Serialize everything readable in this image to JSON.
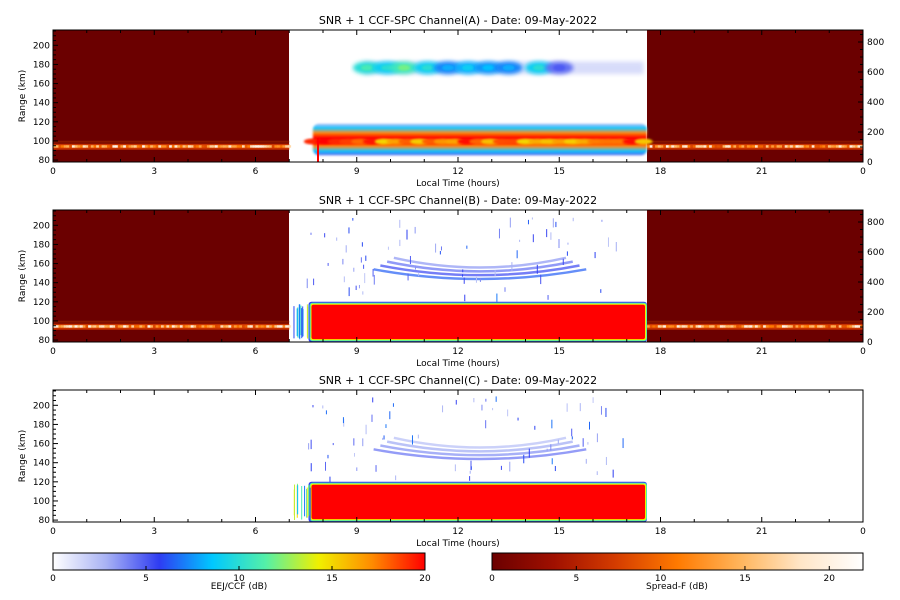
{
  "colors": {
    "eej_scale": [
      "#ffffff",
      "#a8b2f4",
      "#2e3cf2",
      "#00c8ff",
      "#54f0a8",
      "#f0f000",
      "#ff8c00",
      "#ff0000"
    ],
    "spread_scale": [
      "#6b0000",
      "#a01000",
      "#d43c00",
      "#ff7a00",
      "#ffb45a",
      "#ffe6c8",
      "#ffffff"
    ],
    "night_background": "#6b0000",
    "saturated_red": "#ff0000",
    "axis_color": "#000000"
  },
  "chart_data": [
    {
      "type": "heatmap",
      "title": "SNR + 1 CCF-SPC Channel(A) - Date: 09-May-2022",
      "xlabel": "Local Time (hours)",
      "ylabel": "Range (km)",
      "xlim": [
        0,
        24
      ],
      "ylim": [
        78,
        216
      ],
      "y2lim": [
        0,
        880
      ],
      "xticks": [
        "0",
        "3",
        "6",
        "9",
        "12",
        "15",
        "18",
        "21",
        "0"
      ],
      "yticks": [
        80,
        100,
        120,
        140,
        160,
        180,
        200
      ],
      "y2ticks": [
        0,
        200,
        400,
        600,
        800
      ],
      "night_spans_hours": [
        [
          0,
          7.0
        ],
        [
          17.6,
          24
        ]
      ],
      "day_span_hours": [
        7.0,
        17.6
      ],
      "features": [
        {
          "feature": "E-region echo layer (night, Spread-F scale)",
          "range_km": [
            90,
            98
          ]
        },
        {
          "feature": "F-region 150 km echoes",
          "hours": [
            9.2,
            17.5
          ],
          "range_km": [
            170,
            183
          ],
          "peak_db": 7
        },
        {
          "feature": "EEJ echoes",
          "hours": [
            7.7,
            17.6
          ],
          "range_km": [
            85,
            118
          ],
          "peak_db": 20
        }
      ]
    },
    {
      "type": "heatmap",
      "title": "SNR + 1 CCF-SPC Channel(B) - Date: 09-May-2022",
      "xlabel": "Local Time (hours)",
      "ylabel": "Range (km)",
      "xlim": [
        0,
        24
      ],
      "ylim": [
        78,
        216
      ],
      "y2lim": [
        0,
        880
      ],
      "xticks": [
        "0",
        "3",
        "6",
        "9",
        "12",
        "15",
        "18",
        "21",
        "0"
      ],
      "yticks": [
        80,
        100,
        120,
        140,
        160,
        180,
        200
      ],
      "y2ticks": [
        0,
        200,
        400,
        600,
        800
      ],
      "night_spans_hours": [
        [
          0,
          7.0
        ],
        [
          17.6,
          24
        ]
      ],
      "day_span_hours": [
        7.0,
        17.6
      ],
      "features": [
        {
          "feature": "E-region echo layer (night, Spread-F scale)",
          "range_km": [
            90,
            98
          ]
        },
        {
          "feature": "F-region 150 km echoes (arc)",
          "hours": [
            9.5,
            15.8
          ],
          "range_km": [
            140,
            165
          ],
          "peak_db": 3
        },
        {
          "feature": "EEJ echoes (saturated)",
          "hours": [
            7.6,
            17.6
          ],
          "range_km": [
            80,
            118
          ],
          "peak_db": 20
        }
      ]
    },
    {
      "type": "heatmap",
      "title": "SNR + 1 CCF-SPC Channel(C) - Date: 09-May-2022",
      "xlabel": "Local Time (hours)",
      "ylabel": "Range (km)",
      "xlim": [
        0,
        24
      ],
      "ylim": [
        78,
        216
      ],
      "xticks": [
        "0",
        "3",
        "6",
        "9",
        "12",
        "15",
        "18",
        "21",
        "0"
      ],
      "yticks": [
        80,
        100,
        120,
        140,
        160,
        180,
        200
      ],
      "features": [
        {
          "feature": "F-region 150 km echoes (arc)",
          "hours": [
            9.5,
            15.8
          ],
          "range_km": [
            140,
            165
          ],
          "peak_db": 2
        },
        {
          "feature": "EEJ echoes (saturated)",
          "hours": [
            7.6,
            17.6
          ],
          "range_km": [
            80,
            118
          ],
          "peak_db": 20
        }
      ]
    }
  ],
  "colorbars": [
    {
      "label": "EEJ/CCF (dB)",
      "ticks": [
        "0",
        "5",
        "10",
        "15",
        "20"
      ],
      "range": [
        0,
        20
      ]
    },
    {
      "label": "Spread-F (dB)",
      "ticks": [
        "0",
        "5",
        "10",
        "15",
        "20"
      ],
      "range": [
        0,
        22
      ]
    }
  ]
}
